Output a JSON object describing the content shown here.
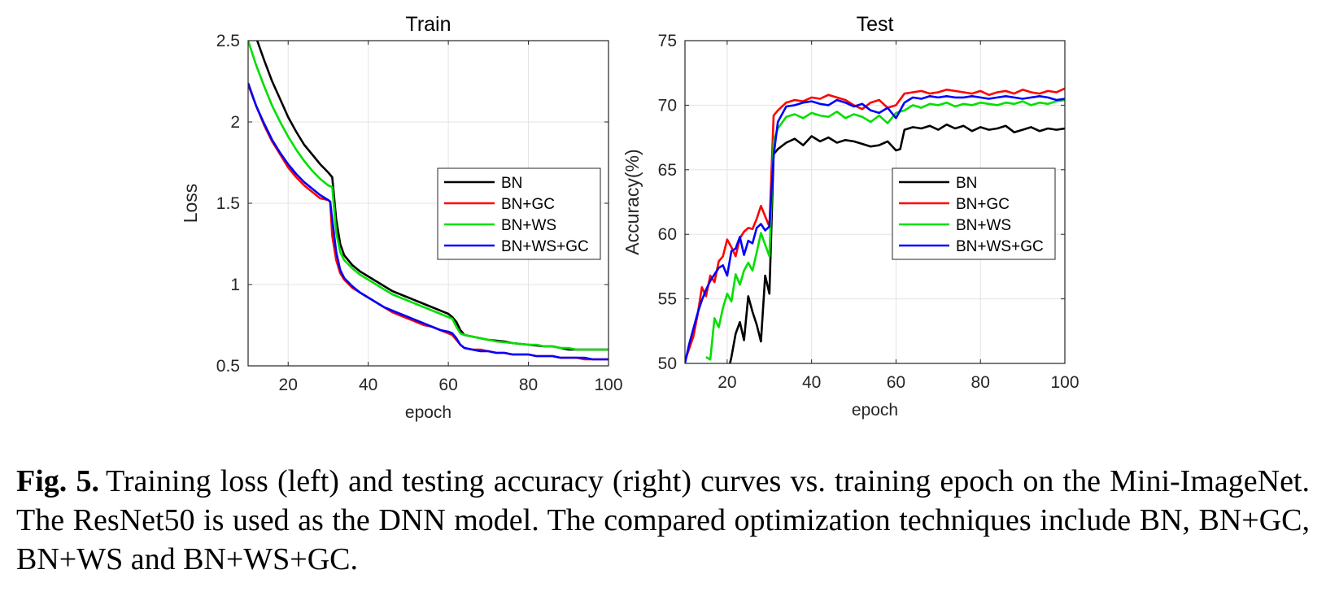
{
  "figure": {
    "caption_label": "Fig. 5.",
    "caption_text": "Training loss (left) and testing accuracy (right) curves vs. training epoch on the Mini-ImageNet. The ResNet50 is used as the DNN model. The compared optimization techniques include BN, BN+GC, BN+WS and BN+WS+GC."
  },
  "colors": {
    "BN": "#000000",
    "BN+GC": "#ff0000",
    "BN+WS": "#00e000",
    "BN+WS+GC": "#0000ff"
  },
  "chart_data": [
    {
      "type": "line",
      "title": "Train",
      "xlabel": "epoch",
      "ylabel": "Loss",
      "xlim": [
        10,
        100
      ],
      "ylim": [
        0.5,
        2.5
      ],
      "xticks": [
        20,
        40,
        60,
        80,
        100
      ],
      "yticks": [
        0.5,
        1,
        1.5,
        2,
        2.5
      ],
      "ytick_labels": [
        "0.5",
        "1",
        "1.5",
        "2",
        "2.5"
      ],
      "grid": true,
      "legend_position": "center-right",
      "series": [
        {
          "name": "BN",
          "x": [
            10,
            12,
            14,
            16,
            18,
            20,
            22,
            24,
            26,
            28,
            30,
            31,
            32,
            33,
            34,
            36,
            38,
            40,
            42,
            44,
            46,
            48,
            50,
            52,
            54,
            56,
            58,
            60,
            61,
            62,
            63,
            64,
            66,
            68,
            70,
            72,
            74,
            76,
            78,
            80,
            82,
            84,
            86,
            88,
            90,
            92,
            94,
            96,
            98,
            100
          ],
          "y": [
            2.7,
            2.52,
            2.38,
            2.25,
            2.14,
            2.03,
            1.94,
            1.86,
            1.8,
            1.74,
            1.69,
            1.66,
            1.4,
            1.25,
            1.18,
            1.12,
            1.08,
            1.05,
            1.02,
            0.99,
            0.96,
            0.94,
            0.92,
            0.9,
            0.88,
            0.86,
            0.84,
            0.82,
            0.8,
            0.77,
            0.72,
            0.69,
            0.68,
            0.67,
            0.66,
            0.655,
            0.65,
            0.64,
            0.635,
            0.63,
            0.625,
            0.62,
            0.62,
            0.61,
            0.6,
            0.6,
            0.6,
            0.6,
            0.6,
            0.6
          ]
        },
        {
          "name": "BN+GC",
          "x": [
            10,
            12,
            14,
            16,
            18,
            20,
            22,
            24,
            26,
            28,
            30,
            30.5,
            31,
            32,
            33,
            34,
            36,
            38,
            40,
            42,
            44,
            46,
            48,
            50,
            52,
            54,
            56,
            58,
            60,
            61,
            62,
            63,
            64,
            66,
            68,
            70,
            72,
            74,
            76,
            78,
            80,
            82,
            84,
            86,
            88,
            90,
            92,
            94,
            96,
            98,
            100
          ],
          "y": [
            2.23,
            2.1,
            1.98,
            1.88,
            1.8,
            1.72,
            1.66,
            1.61,
            1.57,
            1.53,
            1.52,
            1.51,
            1.3,
            1.15,
            1.07,
            1.03,
            0.98,
            0.95,
            0.92,
            0.89,
            0.86,
            0.83,
            0.81,
            0.79,
            0.77,
            0.75,
            0.74,
            0.72,
            0.7,
            0.69,
            0.66,
            0.63,
            0.61,
            0.6,
            0.6,
            0.59,
            0.58,
            0.58,
            0.57,
            0.57,
            0.57,
            0.56,
            0.56,
            0.56,
            0.55,
            0.55,
            0.55,
            0.54,
            0.54,
            0.54,
            0.54
          ]
        },
        {
          "name": "BN+WS",
          "x": [
            10,
            12,
            14,
            16,
            18,
            20,
            22,
            24,
            26,
            28,
            30,
            31,
            32,
            33,
            34,
            36,
            38,
            40,
            42,
            44,
            46,
            48,
            50,
            52,
            54,
            56,
            58,
            60,
            61,
            62,
            63,
            64,
            66,
            68,
            70,
            72,
            74,
            76,
            78,
            80,
            82,
            84,
            86,
            88,
            90,
            92,
            94,
            96,
            98,
            100
          ],
          "y": [
            2.5,
            2.35,
            2.22,
            2.1,
            2.0,
            1.91,
            1.83,
            1.76,
            1.7,
            1.65,
            1.61,
            1.6,
            1.32,
            1.2,
            1.15,
            1.1,
            1.06,
            1.03,
            1.0,
            0.97,
            0.94,
            0.92,
            0.9,
            0.88,
            0.86,
            0.84,
            0.82,
            0.8,
            0.79,
            0.74,
            0.7,
            0.69,
            0.68,
            0.67,
            0.66,
            0.65,
            0.645,
            0.64,
            0.635,
            0.63,
            0.63,
            0.62,
            0.62,
            0.61,
            0.61,
            0.6,
            0.6,
            0.6,
            0.6,
            0.6
          ]
        },
        {
          "name": "BN+WS+GC",
          "x": [
            10,
            12,
            14,
            16,
            18,
            20,
            22,
            24,
            26,
            28,
            30,
            30.5,
            31,
            32,
            33,
            34,
            36,
            38,
            40,
            42,
            44,
            46,
            48,
            50,
            52,
            54,
            56,
            58,
            60,
            61,
            62,
            63,
            64,
            66,
            68,
            70,
            72,
            74,
            76,
            78,
            80,
            82,
            84,
            86,
            88,
            90,
            92,
            94,
            96,
            98,
            100
          ],
          "y": [
            2.24,
            2.1,
            1.99,
            1.89,
            1.81,
            1.74,
            1.68,
            1.63,
            1.59,
            1.55,
            1.52,
            1.51,
            1.4,
            1.2,
            1.09,
            1.04,
            0.99,
            0.95,
            0.92,
            0.89,
            0.86,
            0.84,
            0.82,
            0.8,
            0.78,
            0.76,
            0.74,
            0.72,
            0.71,
            0.7,
            0.67,
            0.63,
            0.61,
            0.6,
            0.59,
            0.59,
            0.58,
            0.58,
            0.57,
            0.57,
            0.57,
            0.56,
            0.56,
            0.56,
            0.55,
            0.55,
            0.55,
            0.55,
            0.54,
            0.54,
            0.54
          ]
        }
      ]
    },
    {
      "type": "line",
      "title": "Test",
      "xlabel": "epoch",
      "ylabel": "Accuracy(%)",
      "xlim": [
        10,
        100
      ],
      "ylim": [
        50,
        75
      ],
      "xticks": [
        20,
        40,
        60,
        80,
        100
      ],
      "yticks": [
        50,
        55,
        60,
        65,
        70,
        75
      ],
      "ytick_labels": [
        "50",
        "55",
        "60",
        "65",
        "70",
        "75"
      ],
      "grid": true,
      "legend_position": "center-right",
      "series": [
        {
          "name": "BN",
          "x": [
            20,
            21,
            22,
            23,
            24,
            25,
            26,
            27,
            28,
            29,
            30,
            31,
            32,
            34,
            36,
            38,
            40,
            42,
            44,
            46,
            48,
            50,
            52,
            54,
            56,
            58,
            60,
            61,
            62,
            64,
            66,
            68,
            70,
            72,
            74,
            76,
            78,
            80,
            82,
            84,
            86,
            88,
            90,
            92,
            94,
            96,
            98,
            100
          ],
          "y": [
            49,
            50.5,
            52.3,
            53.2,
            51.8,
            55.2,
            54,
            53,
            51.7,
            56.8,
            55.4,
            66.2,
            66.6,
            67.1,
            67.4,
            66.9,
            67.6,
            67.2,
            67.5,
            67.1,
            67.3,
            67.2,
            67.0,
            66.8,
            66.9,
            67.2,
            66.5,
            66.6,
            68.1,
            68.3,
            68.2,
            68.4,
            68.1,
            68.5,
            68.2,
            68.4,
            68.0,
            68.3,
            68.1,
            68.2,
            68.4,
            67.9,
            68.1,
            68.3,
            68.0,
            68.2,
            68.1,
            68.2
          ]
        },
        {
          "name": "BN+GC",
          "x": [
            10,
            12,
            13,
            14,
            15,
            16,
            17,
            18,
            19,
            20,
            21,
            22,
            23,
            24,
            25,
            26,
            27,
            28,
            29,
            30,
            31,
            32,
            34,
            36,
            38,
            40,
            42,
            44,
            46,
            48,
            50,
            52,
            54,
            56,
            58,
            60,
            62,
            64,
            66,
            68,
            70,
            72,
            74,
            76,
            78,
            80,
            82,
            84,
            86,
            88,
            90,
            92,
            94,
            96,
            98,
            100
          ],
          "y": [
            50.2,
            52.1,
            53.8,
            55.9,
            55.2,
            56.8,
            56.3,
            57.9,
            58.3,
            59.6,
            59.0,
            58.3,
            59.7,
            60.2,
            60.5,
            60.4,
            61.2,
            62.2,
            61.4,
            60.6,
            69.2,
            69.6,
            70.2,
            70.4,
            70.3,
            70.6,
            70.5,
            70.8,
            70.6,
            70.4,
            70.0,
            69.7,
            70.2,
            70.4,
            69.8,
            70.0,
            70.9,
            71.0,
            71.1,
            70.9,
            71.0,
            71.2,
            71.1,
            71.0,
            70.9,
            71.1,
            70.8,
            71.0,
            71.1,
            70.9,
            71.2,
            71.0,
            70.9,
            71.1,
            71.0,
            71.3
          ]
        },
        {
          "name": "BN+WS",
          "x": [
            15,
            16,
            17,
            18,
            19,
            20,
            21,
            22,
            23,
            24,
            25,
            26,
            27,
            28,
            29,
            30,
            31,
            32,
            34,
            36,
            38,
            40,
            42,
            44,
            46,
            48,
            50,
            52,
            54,
            56,
            58,
            60,
            62,
            64,
            66,
            68,
            70,
            72,
            74,
            76,
            78,
            80,
            82,
            84,
            86,
            88,
            90,
            92,
            94,
            96,
            98,
            100
          ],
          "y": [
            50.5,
            50.3,
            53.5,
            52.8,
            54.3,
            55.4,
            54.8,
            56.9,
            56.1,
            57.2,
            57.8,
            57.2,
            58.6,
            60.1,
            59.2,
            58.3,
            67.2,
            68.2,
            69.1,
            69.3,
            69.0,
            69.4,
            69.2,
            69.1,
            69.5,
            69.0,
            69.3,
            69.1,
            68.7,
            69.2,
            68.6,
            69.4,
            69.6,
            70.0,
            69.8,
            70.1,
            70.0,
            70.2,
            69.9,
            70.1,
            70.0,
            70.2,
            70.1,
            70.0,
            70.2,
            70.1,
            70.3,
            70.0,
            70.2,
            70.1,
            70.3,
            70.4
          ]
        },
        {
          "name": "BN+WS+GC",
          "x": [
            10,
            11,
            12,
            13,
            14,
            15,
            16,
            17,
            18,
            19,
            20,
            21,
            22,
            23,
            24,
            25,
            26,
            27,
            28,
            29,
            30,
            31,
            32,
            34,
            36,
            38,
            40,
            42,
            44,
            46,
            48,
            50,
            52,
            54,
            56,
            58,
            60,
            62,
            64,
            66,
            68,
            70,
            72,
            74,
            76,
            78,
            80,
            82,
            84,
            86,
            88,
            90,
            92,
            94,
            96,
            98,
            100
          ],
          "y": [
            50.0,
            51.5,
            52.7,
            53.9,
            54.9,
            55.7,
            56.4,
            56.9,
            57.4,
            57.6,
            56.8,
            58.7,
            58.9,
            59.8,
            58.4,
            59.5,
            59.3,
            60.5,
            60.8,
            60.3,
            60.6,
            66.1,
            68.7,
            69.9,
            70.0,
            70.2,
            70.3,
            70.1,
            70.0,
            70.4,
            70.2,
            69.9,
            70.1,
            69.6,
            69.4,
            69.8,
            69.0,
            70.2,
            70.6,
            70.5,
            70.7,
            70.6,
            70.7,
            70.6,
            70.6,
            70.7,
            70.6,
            70.5,
            70.6,
            70.7,
            70.6,
            70.5,
            70.6,
            70.7,
            70.6,
            70.4,
            70.5
          ]
        }
      ]
    }
  ]
}
